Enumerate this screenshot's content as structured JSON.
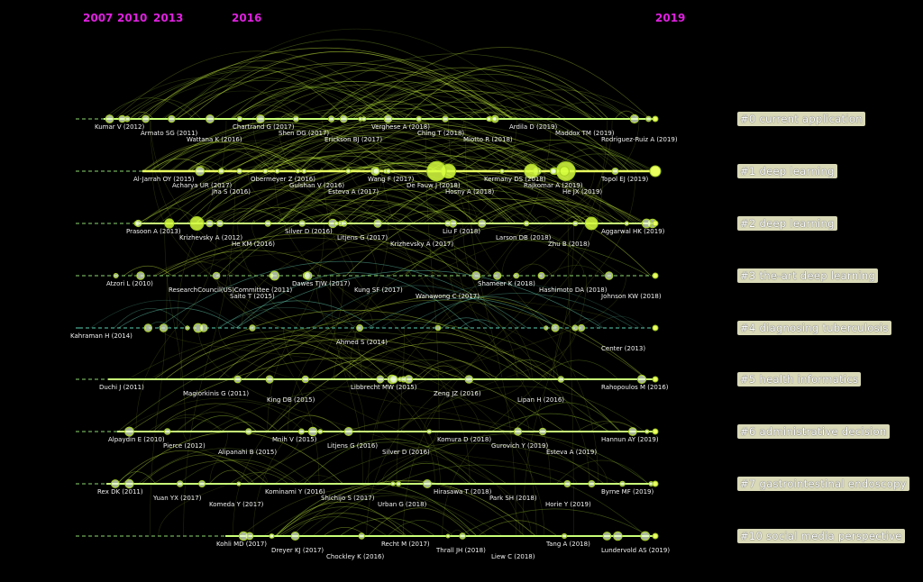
{
  "years": [
    "2007",
    "2010",
    "2013",
    "2016",
    "2019"
  ],
  "clusters": [
    {
      "label": "#0 current application",
      "refs": [
        "Kumar V (2012)",
        "Armato SG (2011)",
        "Wattana K (2016)",
        "Chartrand G (2017)",
        "Shen DG (2017)",
        "Erickson BJ (2017)",
        "Verghese A (2018)",
        "Ching T (2018)",
        "Miotto R (2018)",
        "Ardila D (2019)",
        "Maddox TM (2019)",
        "Rodriguez-Ruiz A (2019)"
      ]
    },
    {
      "label": "#1 deep learning",
      "refs": [
        "Al-Jarrah OY (2015)",
        "Acharya UR (2017)",
        "Jha S (2016)",
        "Obermeyer Z (2016)",
        "Gulshan V (2016)",
        "Esteva A (2017)",
        "Wang F (2017)",
        "De Fauw J (2018)",
        "Hosny A (2018)",
        "Kermany DS (2018)",
        "Rajkomar A (2019)",
        "He JX (2019)",
        "Topol EJ (2019)"
      ]
    },
    {
      "label": "#2 deep learning",
      "refs": [
        "Prasoon A (2013)",
        "Krizhevsky A (2012)",
        "He KM (2016)",
        "Silver D (2016)",
        "Litjens G (2017)",
        "Krizhevsky A (2017)",
        "Liu F (2018)",
        "Larson DB (2018)",
        "Zhu B (2018)",
        "Aggarwal HK (2019)"
      ]
    },
    {
      "label": "#3 the-art deep learning",
      "refs": [
        "Atzori L (2010)",
        "ResearchCouncil(US)Committee (2011)",
        "Saito T (2015)",
        "Dawes TJW (2017)",
        "Kung SF (2017)",
        "Wanawong C (2017)",
        "Shameer K (2018)",
        "Hashimoto DA (2018)",
        "Johnson KW (2018)"
      ]
    },
    {
      "label": "#4 diagnosing tuberculosis",
      "refs": [
        "Kahraman H (2014)",
        "Ahmed S (2014)",
        "Center (2013)"
      ]
    },
    {
      "label": "#5 health informatics",
      "refs": [
        "Duchi J (2011)",
        "Magiorkinis G (2011)",
        "King DB (2015)",
        "Libbrecht MW (2015)",
        "Zeng JZ (2016)",
        "Lipan H (2016)",
        "Rahopoulos M (2016)"
      ]
    },
    {
      "label": "#6 administrative decision",
      "refs": [
        "Alpaydin E (2010)",
        "Pierce (2012)",
        "Alipanahi B (2015)",
        "Mnih V (2015)",
        "Litjens G (2016)",
        "Silver D (2016)",
        "Komura D (2018)",
        "Gurovich Y (2019)",
        "Esteva A (2019)",
        "Hannun AY (2019)"
      ]
    },
    {
      "label": "#7 gastrointestinal endoscopy",
      "refs": [
        "Rex DK (2011)",
        "Yuan YX (2017)",
        "Komeda Y (2017)",
        "Kominami Y (2016)",
        "Shichijo S (2017)",
        "Urban G (2018)",
        "Hirasawa T (2018)",
        "Park SH (2018)",
        "Horie Y (2019)",
        "Byrne MF (2019)"
      ]
    },
    {
      "label": "#10 social media perspective",
      "refs": [
        "Kohli MD (2017)",
        "Dreyer KJ (2017)",
        "Chockley K (2016)",
        "Recht M (2017)",
        "Thrall JH (2018)",
        "Liew C (2018)",
        "Tang A (2018)",
        "Lundervold AS (2019)"
      ]
    }
  ],
  "colors": {
    "background": "#000000",
    "year": "#e020e0",
    "timeline": "#ccff66",
    "label_bg": "#d9d9b8"
  }
}
